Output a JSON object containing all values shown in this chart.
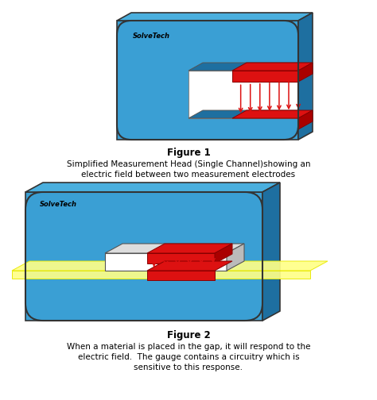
{
  "figure1_caption_bold": "Figure 1",
  "figure1_caption": "Simplified Measurement Head (Single Channel)showing an\nelectric field between two measurement electrodes",
  "figure2_caption_bold": "Figure 2",
  "figure2_caption": "When a material is placed in the gap, it will respond to the\nelectric field.  The gauge contains a circuitry which is\nsensitive to this response.",
  "logo_text": "SolveTech",
  "bg_color": "#ffffff",
  "blue_face": "#3a9fd4",
  "blue_top": "#4aafde",
  "blue_side": "#1e6fa0",
  "blue_inner": "#2e8fc4",
  "red_color": "#dd1111",
  "yellow_color": "#ffff88",
  "yellow_edge": "#e8e800",
  "outline": "#333333"
}
